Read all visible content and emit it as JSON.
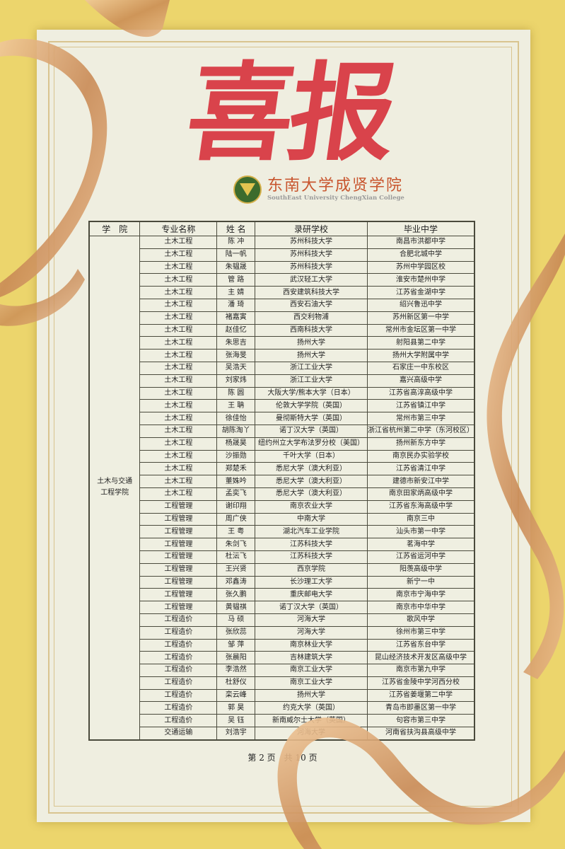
{
  "title": "喜报",
  "logo": {
    "name_cn": "东南大学成贤学院",
    "name_en": "SouthEast University ChengXian College"
  },
  "colors": {
    "background": "#ecd56c",
    "paper": "#efeee0",
    "title": "#d9434b",
    "ribbon": "#d9a06a"
  },
  "table": {
    "headers": [
      "学　院",
      "专业名称",
      "姓 名",
      "录研学校",
      "毕业中学"
    ],
    "college": "土木与交通工程学院",
    "rows": [
      [
        "土木工程",
        "陈 冲",
        "苏州科技大学",
        "南昌市洪都中学"
      ],
      [
        "土木工程",
        "陆一帆",
        "苏州科技大学",
        "合肥北城中学"
      ],
      [
        "土木工程",
        "朱韫晟",
        "苏州科技大学",
        "苏州中学园区校"
      ],
      [
        "土木工程",
        "管 路",
        "武汉轻工大学",
        "淮安市楚州中学"
      ],
      [
        "土木工程",
        "主 婧",
        "西安建筑科技大学",
        "江苏省金湖中学"
      ],
      [
        "土木工程",
        "潘 琦",
        "西安石油大学",
        "绍兴鲁迅中学"
      ],
      [
        "土木工程",
        "褚嘉寅",
        "西交利物浦",
        "苏州新区第一中学"
      ],
      [
        "土木工程",
        "赵佳忆",
        "西南科技大学",
        "常州市金坛区第一中学"
      ],
      [
        "土木工程",
        "朱思吉",
        "扬州大学",
        "射阳县第二中学"
      ],
      [
        "土木工程",
        "张海旻",
        "扬州大学",
        "扬州大学附属中学"
      ],
      [
        "土木工程",
        "吴浩天",
        "浙江工业大学",
        "石家庄一中东校区"
      ],
      [
        "土木工程",
        "刘家炜",
        "浙江工业大学",
        "嘉兴高级中学"
      ],
      [
        "土木工程",
        "陈 圆",
        "大阪大学/熊本大学（日本）",
        "江苏省高淳高级中学"
      ],
      [
        "土木工程",
        "王 聃",
        "伦敦大学学院（英国）",
        "江苏省镇江中学"
      ],
      [
        "土木工程",
        "徐佳怡",
        "曼彻斯特大学（英国）",
        "常州市第三中学"
      ],
      [
        "土木工程",
        "胡陈淘丫",
        "诺丁汉大学（英国）",
        "浙江省杭州第二中学（东河校区）"
      ],
      [
        "土木工程",
        "杨晟昊",
        "纽约州立大学布法罗分校（美国）",
        "扬州新东方中学"
      ],
      [
        "土木工程",
        "沙振勋",
        "千叶大学（日本）",
        "南京民办实验学校"
      ],
      [
        "土木工程",
        "郑楚禾",
        "悉尼大学（澳大利亚）",
        "江苏省清江中学"
      ],
      [
        "土木工程",
        "董姝吟",
        "悉尼大学（澳大利亚）",
        "建德市新安江中学"
      ],
      [
        "土木工程",
        "孟奕飞",
        "悉尼大学（澳大利亚）",
        "南京田家炳高级中学"
      ],
      [
        "工程管理",
        "谢印翔",
        "南京农业大学",
        "江苏省东海高级中学"
      ],
      [
        "工程管理",
        "周广侠",
        "中南大学",
        "南京三中"
      ],
      [
        "工程管理",
        "王 粤",
        "湖北汽车工业学院",
        "汕头市第一中学"
      ],
      [
        "工程管理",
        "朱剑飞",
        "江苏科技大学",
        "茗海中学"
      ],
      [
        "工程管理",
        "杜沄飞",
        "江苏科技大学",
        "江苏省运河中学"
      ],
      [
        "工程管理",
        "王兴贤",
        "西京学院",
        "阳羡高级中学"
      ],
      [
        "工程管理",
        "邓鑫涛",
        "长沙理工大学",
        "新宁一中"
      ],
      [
        "工程管理",
        "张久鹏",
        "重庆邮电大学",
        "南京市宁海中学"
      ],
      [
        "工程管理",
        "黄韫祺",
        "诺丁汉大学（英国）",
        "南京市中华中学"
      ],
      [
        "工程造价",
        "马 硕",
        "河海大学",
        "歌风中学"
      ],
      [
        "工程造价",
        "张欣蕊",
        "河海大学",
        "徐州市第三中学"
      ],
      [
        "工程造价",
        "邹 萍",
        "南京林业大学",
        "江苏省东台中学"
      ],
      [
        "工程造价",
        "张晨阳",
        "吉林建筑大学",
        "昆山经济技术开发区高级中学"
      ],
      [
        "工程造价",
        "李浩然",
        "南京工业大学",
        "南京市第九中学"
      ],
      [
        "工程造价",
        "杜舒仪",
        "南京工业大学",
        "江苏省金陵中学河西分校"
      ],
      [
        "工程造价",
        "栾云峰",
        "扬州大学",
        "江苏省姜堰第二中学"
      ],
      [
        "工程造价",
        "郭 昊",
        "约克大学（英国）",
        "青岛市即墨区第一中学"
      ],
      [
        "工程造价",
        "吴 钰",
        "新南威尔士大学（英国）",
        "句容市第三中学"
      ],
      [
        "交通运输",
        "刘浩宇",
        "河海大学",
        "河南省扶沟县高级中学"
      ]
    ]
  },
  "footer": "第 2 页　共 10 页"
}
